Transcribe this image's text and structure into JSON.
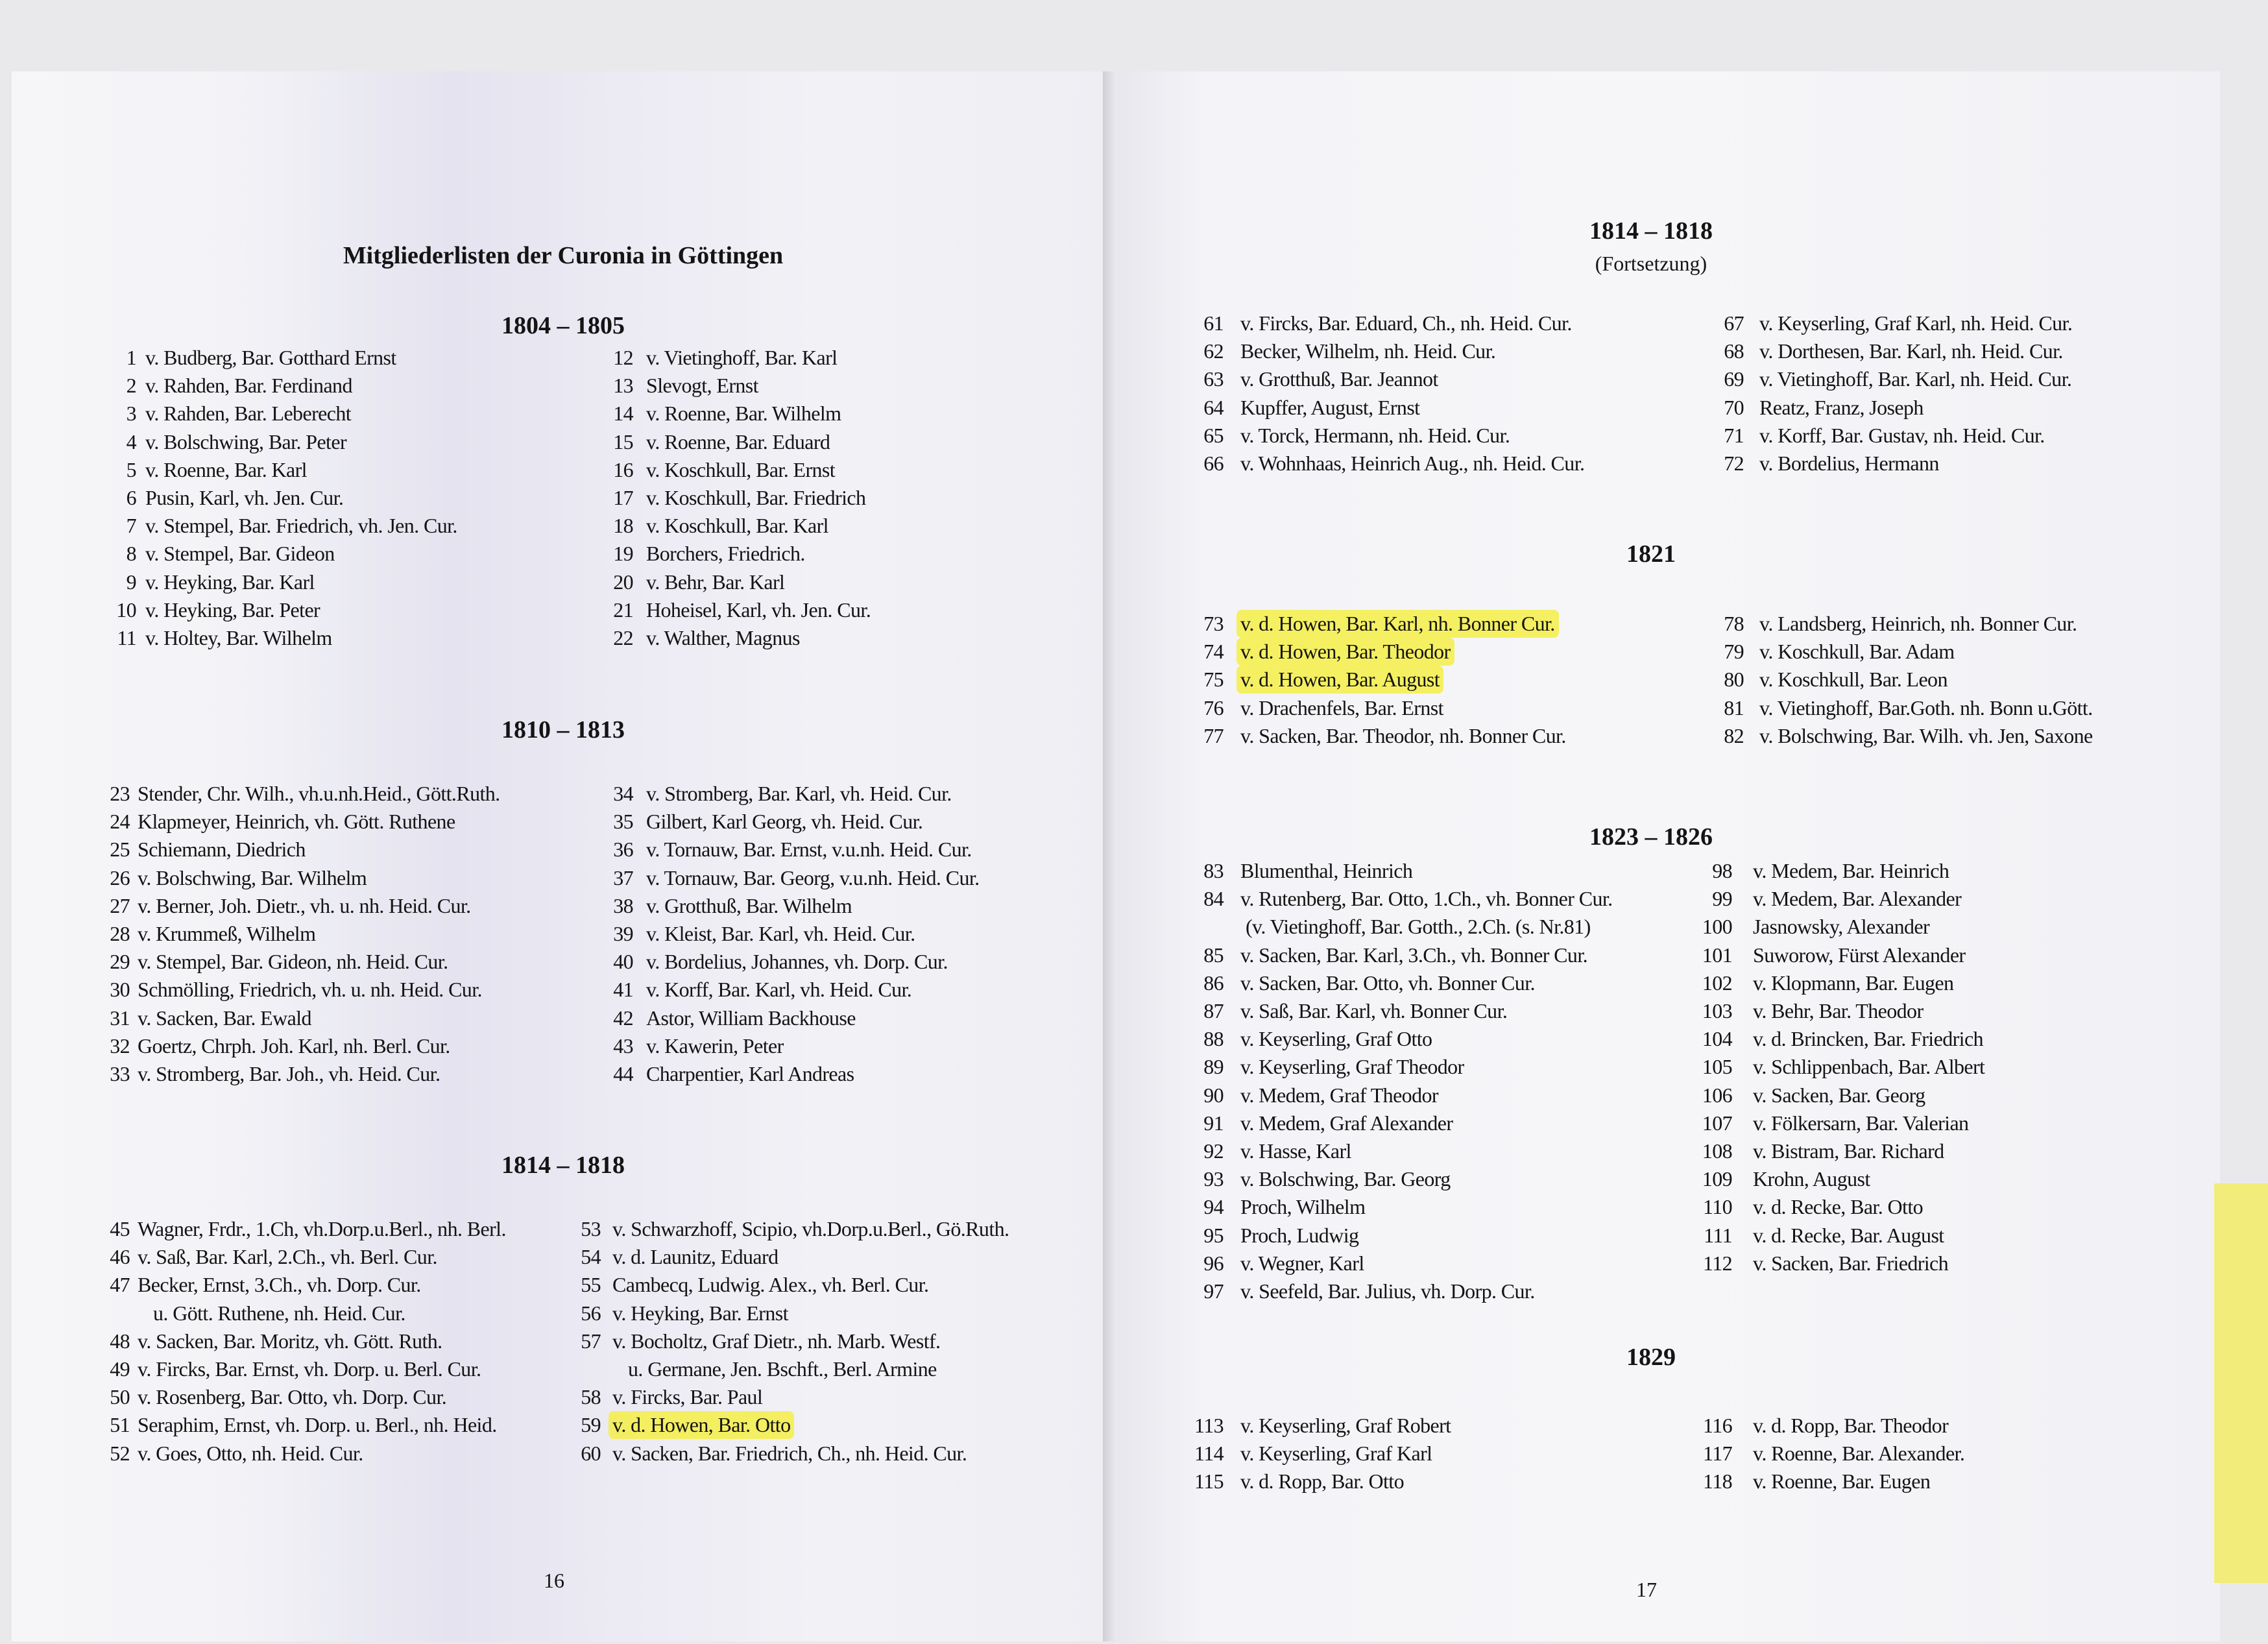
{
  "left_page": {
    "title": "Mitgliederlisten der Curonia in Göttingen",
    "page_number": "16",
    "sections": [
      {
        "heading": "1804 – 1805",
        "columns": [
          [
            [
              "1",
              "v. Budberg, Bar. Gotthard Ernst"
            ],
            [
              "2",
              "v. Rahden, Bar. Ferdinand"
            ],
            [
              "3",
              "v. Rahden, Bar. Leberecht"
            ],
            [
              "4",
              "v. Bolschwing, Bar. Peter"
            ],
            [
              "5",
              "v. Roenne, Bar. Karl"
            ],
            [
              "6",
              "Pusin, Karl, vh. Jen. Cur."
            ],
            [
              "7",
              "v. Stempel, Bar. Friedrich, vh. Jen. Cur."
            ],
            [
              "8",
              "v. Stempel, Bar. Gideon"
            ],
            [
              "9",
              "v. Heyking, Bar. Karl"
            ],
            [
              "10",
              "v. Heyking, Bar. Peter"
            ],
            [
              "11",
              "v. Holtey, Bar. Wilhelm"
            ]
          ],
          [
            [
              "12",
              "v. Vietinghoff, Bar. Karl"
            ],
            [
              "13",
              "Slevogt, Ernst"
            ],
            [
              "14",
              "v. Roenne, Bar. Wilhelm"
            ],
            [
              "15",
              "v. Roenne, Bar. Eduard"
            ],
            [
              "16",
              "v. Koschkull, Bar. Ernst"
            ],
            [
              "17",
              "v. Koschkull, Bar. Friedrich"
            ],
            [
              "18",
              "v. Koschkull, Bar. Karl"
            ],
            [
              "19",
              "Borchers, Friedrich."
            ],
            [
              "20",
              "v. Behr, Bar. Karl"
            ],
            [
              "21",
              "Hoheisel, Karl, vh. Jen. Cur."
            ],
            [
              "22",
              "v. Walther, Magnus"
            ]
          ]
        ]
      },
      {
        "heading": "1810 – 1813",
        "columns": [
          [
            [
              "23",
              "Stender, Chr. Wilh., vh.u.nh.Heid., Gött.Ruth."
            ],
            [
              "24",
              "Klapmeyer, Heinrich, vh. Gött. Ruthene"
            ],
            [
              "25",
              "Schiemann, Diedrich"
            ],
            [
              "26",
              "v. Bolschwing, Bar. Wilhelm"
            ],
            [
              "27",
              "v. Berner, Joh. Dietr., vh. u. nh. Heid. Cur."
            ],
            [
              "28",
              "v. Krummeß, Wilhelm"
            ],
            [
              "29",
              "v. Stempel, Bar. Gideon, nh. Heid. Cur."
            ],
            [
              "30",
              "Schmölling, Friedrich, vh. u. nh. Heid. Cur."
            ],
            [
              "31",
              "v. Sacken, Bar. Ewald"
            ],
            [
              "32",
              "Goertz, Chrph. Joh. Karl, nh. Berl. Cur."
            ],
            [
              "33",
              "v. Stromberg, Bar. Joh., vh. Heid. Cur."
            ]
          ],
          [
            [
              "34",
              "v. Stromberg, Bar. Karl, vh. Heid. Cur."
            ],
            [
              "35",
              "Gilbert, Karl Georg, vh. Heid. Cur."
            ],
            [
              "36",
              "v. Tornauw, Bar. Ernst, v.u.nh. Heid. Cur."
            ],
            [
              "37",
              "v. Tornauw, Bar. Georg, v.u.nh. Heid. Cur."
            ],
            [
              "38",
              "v. Grotthuß, Bar. Wilhelm"
            ],
            [
              "39",
              "v. Kleist, Bar. Karl, vh. Heid. Cur."
            ],
            [
              "40",
              "v. Bordelius, Johannes, vh. Dorp. Cur."
            ],
            [
              "41",
              "v. Korff, Bar. Karl, vh. Heid. Cur."
            ],
            [
              "42",
              "Astor, William Backhouse"
            ],
            [
              "43",
              "v. Kawerin, Peter"
            ],
            [
              "44",
              "Charpentier, Karl Andreas"
            ]
          ]
        ]
      },
      {
        "heading": "1814 – 1818",
        "columns": [
          [
            [
              "45",
              "Wagner, Frdr., 1.Ch, vh.Dorp.u.Berl., nh. Berl."
            ],
            [
              "46",
              "v. Saß, Bar. Karl, 2.Ch., vh. Berl. Cur."
            ],
            [
              "47",
              "Becker, Ernst, 3.Ch., vh. Dorp. Cur."
            ],
            [
              "",
              "u. Gött. Ruthene, nh. Heid. Cur."
            ],
            [
              "48",
              "v. Sacken, Bar. Moritz, vh. Gött. Ruth."
            ],
            [
              "49",
              "v. Fircks, Bar. Ernst, vh. Dorp. u. Berl. Cur."
            ],
            [
              "50",
              "v. Rosenberg, Bar. Otto, vh. Dorp. Cur."
            ],
            [
              "51",
              "Seraphim, Ernst, vh. Dorp. u. Berl., nh. Heid."
            ],
            [
              "52",
              "v. Goes, Otto, nh. Heid. Cur."
            ]
          ],
          [
            [
              "53",
              "v. Schwarzhoff, Scipio, vh.Dorp.u.Berl., Gö.Ruth."
            ],
            [
              "54",
              "v. d. Launitz, Eduard"
            ],
            [
              "55",
              "Cambecq, Ludwig. Alex., vh. Berl. Cur."
            ],
            [
              "56",
              "v. Heyking, Bar. Ernst"
            ],
            [
              "57",
              "v. Bocholtz, Graf Dietr., nh. Marb. Westf."
            ],
            [
              "",
              "u. Germane, Jen. Bschft., Berl. Armine"
            ],
            [
              "58",
              "v. Fircks, Bar. Paul"
            ],
            [
              "59",
              "v. d. Howen, Bar. Otto",
              "hl"
            ],
            [
              "60",
              "v. Sacken, Bar. Friedrich, Ch., nh. Heid. Cur."
            ]
          ]
        ]
      }
    ]
  },
  "right_page": {
    "page_number": "17",
    "sections": [
      {
        "heading": "1814 – 1818",
        "subheading": "(Fortsetzung)",
        "columns": [
          [
            [
              "61",
              "v. Fircks, Bar. Eduard, Ch., nh. Heid. Cur."
            ],
            [
              "62",
              "Becker, Wilhelm, nh. Heid. Cur."
            ],
            [
              "63",
              "v. Grotthuß, Bar. Jeannot"
            ],
            [
              "64",
              "Kupffer, August, Ernst"
            ],
            [
              "65",
              "v. Torck, Hermann, nh. Heid. Cur."
            ],
            [
              "66",
              "v. Wohnhaas, Heinrich Aug., nh. Heid. Cur."
            ]
          ],
          [
            [
              "67",
              "v. Keyserling, Graf Karl, nh. Heid. Cur."
            ],
            [
              "68",
              "v. Dorthesen, Bar. Karl, nh. Heid. Cur."
            ],
            [
              "69",
              "v. Vietinghoff, Bar. Karl, nh. Heid. Cur."
            ],
            [
              "70",
              "Reatz, Franz, Joseph"
            ],
            [
              "71",
              "v. Korff, Bar. Gustav, nh. Heid. Cur."
            ],
            [
              "72",
              "v. Bordelius, Hermann"
            ]
          ]
        ]
      },
      {
        "heading": "1821",
        "columns": [
          [
            [
              "73",
              "v. d. Howen, Bar. Karl, nh. Bonner Cur.",
              "hl"
            ],
            [
              "74",
              "v. d. Howen, Bar. Theodor",
              "hl"
            ],
            [
              "75",
              "v. d. Howen, Bar. August",
              "hl"
            ],
            [
              "76",
              "v. Drachenfels, Bar. Ernst"
            ],
            [
              "77",
              "v. Sacken, Bar. Theodor, nh. Bonner Cur."
            ]
          ],
          [
            [
              "78",
              "v. Landsberg, Heinrich, nh. Bonner Cur."
            ],
            [
              "79",
              "v. Koschkull, Bar. Adam"
            ],
            [
              "80",
              "v. Koschkull, Bar. Leon"
            ],
            [
              "81",
              "v. Vietinghoff, Bar.Goth. nh. Bonn u.Gött."
            ],
            [
              "82",
              "v. Bolschwing, Bar. Wilh. vh. Jen, Saxone"
            ]
          ]
        ]
      },
      {
        "heading": "1823 – 1826",
        "columns": [
          [
            [
              "83",
              "Blumenthal, Heinrich"
            ],
            [
              "84",
              "v. Rutenberg, Bar. Otto, 1.Ch., vh. Bonner Cur."
            ],
            [
              "",
              "(v. Vietinghoff, Bar. Gotth., 2.Ch. (s. Nr.81)"
            ],
            [
              "85",
              "v. Sacken, Bar. Karl, 3.Ch., vh. Bonner Cur."
            ],
            [
              "86",
              "v. Sacken, Bar. Otto, vh. Bonner Cur."
            ],
            [
              "87",
              "v. Saß, Bar. Karl, vh. Bonner Cur."
            ],
            [
              "88",
              "v. Keyserling, Graf Otto"
            ],
            [
              "89",
              "v. Keyserling, Graf Theodor"
            ],
            [
              "90",
              "v. Medem, Graf Theodor"
            ],
            [
              "91",
              "v. Medem, Graf Alexander"
            ],
            [
              "92",
              "v. Hasse, Karl"
            ],
            [
              "93",
              "v. Bolschwing, Bar. Georg"
            ],
            [
              "94",
              "Proch, Wilhelm"
            ],
            [
              "95",
              "Proch, Ludwig"
            ],
            [
              "96",
              "v. Wegner, Karl"
            ],
            [
              "97",
              "v. Seefeld, Bar. Julius, vh. Dorp. Cur."
            ]
          ],
          [
            [
              "98",
              "v. Medem, Bar. Heinrich"
            ],
            [
              "99",
              "v. Medem, Bar. Alexander"
            ],
            [
              "100",
              "Jasnowsky, Alexander"
            ],
            [
              "101",
              "Suworow, Fürst Alexander"
            ],
            [
              "102",
              "v. Klopmann, Bar. Eugen"
            ],
            [
              "103",
              "v. Behr, Bar. Theodor"
            ],
            [
              "104",
              "v. d. Brincken, Bar. Friedrich"
            ],
            [
              "105",
              "v. Schlippenbach, Bar. Albert"
            ],
            [
              "106",
              "v. Sacken, Bar. Georg"
            ],
            [
              "107",
              "v. Fölkersarn, Bar. Valerian"
            ],
            [
              "108",
              "v. Bistram, Bar. Richard"
            ],
            [
              "109",
              "Krohn, August"
            ],
            [
              "110",
              "v. d. Recke, Bar. Otto"
            ],
            [
              "111",
              "v. d. Recke, Bar. August"
            ],
            [
              "112",
              "v. Sacken, Bar. Friedrich"
            ]
          ]
        ]
      },
      {
        "heading": "1829",
        "columns": [
          [
            [
              "113",
              "v. Keyserling, Graf Robert"
            ],
            [
              "114",
              "v. Keyserling, Graf Karl"
            ],
            [
              "115",
              "v. d. Ropp, Bar. Otto"
            ]
          ],
          [
            [
              "116",
              "v. d. Ropp, Bar. Theodor"
            ],
            [
              "117",
              "v. Roenne, Bar. Alexander."
            ],
            [
              "118",
              "v. Roenne, Bar. Eugen"
            ]
          ]
        ]
      }
    ]
  },
  "colors": {
    "highlight": "#f5ee46",
    "sticky_note": "#f2ec7a"
  }
}
